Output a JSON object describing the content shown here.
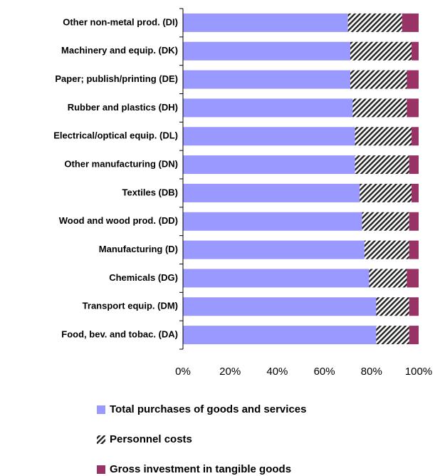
{
  "chart_data": {
    "type": "stacked-bar-horizontal",
    "categories": [
      "Other non-metal prod. (DI)",
      "Machinery and equip. (DK)",
      "Paper; publish/printing (DE)",
      "Rubber and plastics (DH)",
      "Electrical/optical equip. (DL)",
      "Other manufacturing (DN)",
      "Textiles (DB)",
      "Wood and wood prod. (DD)",
      "Manufacturing (D)",
      "Chemicals (DG)",
      "Transport equip. (DM)",
      "Food, bev. and tobac. (DA)"
    ],
    "series": [
      {
        "name": "Total purchases of goods and services",
        "color": "#9999ff",
        "values": [
          70,
          71,
          71,
          72,
          73,
          73,
          75,
          76,
          77,
          79,
          82,
          82
        ]
      },
      {
        "name": "Personnel costs",
        "color": "#222222",
        "pattern": "hatch",
        "values": [
          23,
          26,
          24,
          23,
          24,
          23,
          22,
          20,
          19,
          16,
          14,
          14
        ]
      },
      {
        "name": "Gross investment in tangible goods",
        "color": "#993366",
        "values": [
          7,
          3,
          5,
          5,
          3,
          4,
          3,
          4,
          4,
          5,
          4,
          4
        ]
      }
    ],
    "xlim": [
      0,
      100
    ],
    "xticks": [
      {
        "value": 0,
        "label": "0%"
      },
      {
        "value": 20,
        "label": "20%"
      },
      {
        "value": 40,
        "label": "40%"
      },
      {
        "value": 60,
        "label": "60%"
      },
      {
        "value": 80,
        "label": "80%"
      },
      {
        "value": 100,
        "label": "100%"
      }
    ]
  }
}
